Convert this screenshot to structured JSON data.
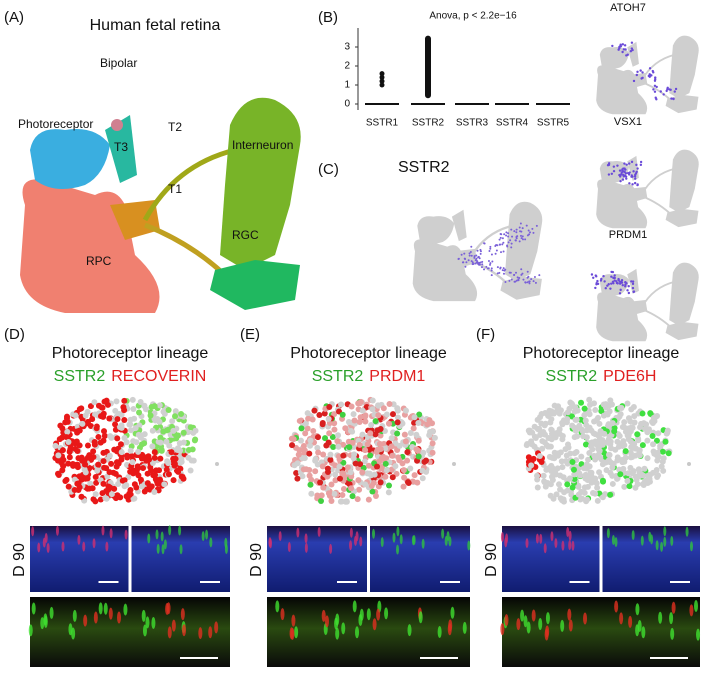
{
  "panels": {
    "A": {
      "label": "(A)",
      "title": "Human fetal retina",
      "clusters": [
        "Bipolar",
        "Photoreceptor",
        "T3",
        "T2",
        "Interneuron",
        "T1",
        "RPC",
        "RGC"
      ]
    },
    "B": {
      "label": "(B)",
      "annotation": "Anova, p < 2.2e−16",
      "yticks": [
        "0",
        "1",
        "2",
        "3"
      ],
      "categories": [
        "SSTR1",
        "SSTR2",
        "SSTR3",
        "SSTR4",
        "SSTR5"
      ]
    },
    "feature_plots": [
      "ATOH7",
      "VSX1",
      "PRDM1"
    ],
    "C": {
      "label": "(C)",
      "title": "SSTR2"
    },
    "D": {
      "label": "(D)",
      "title": "Photoreceptor lineage",
      "green": "SSTR2",
      "red": "RECOVERIN",
      "timepoint": "D 90"
    },
    "E": {
      "label": "(E)",
      "title": "Photoreceptor lineage",
      "green": "SSTR2",
      "red": "PRDM1",
      "timepoint": "D 90"
    },
    "F": {
      "label": "(F)",
      "title": "Photoreceptor lineage",
      "green": "SSTR2",
      "red": "PDE6H",
      "timepoint": "D 90"
    }
  }
}
